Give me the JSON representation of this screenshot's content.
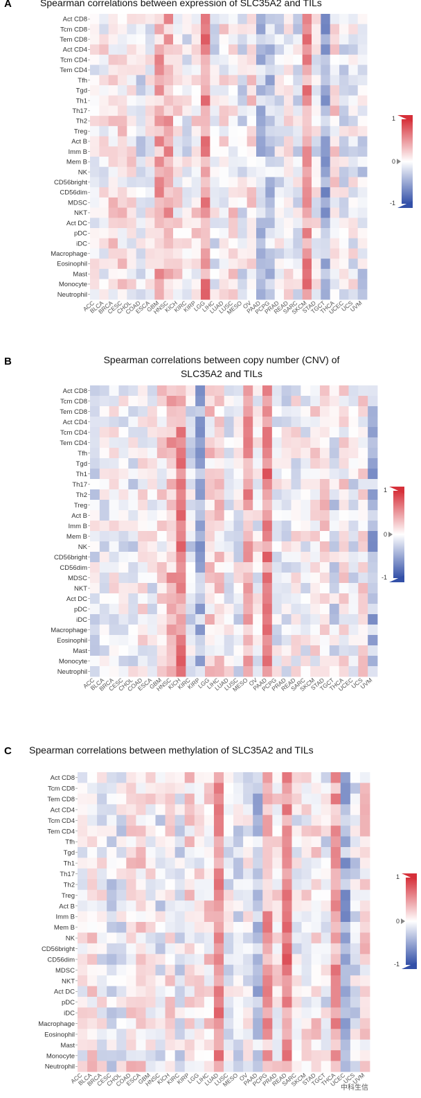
{
  "rows": [
    "Act CD8",
    "Tcm CD8",
    "Tem CD8",
    "Act CD4",
    "Tcm CD4",
    "Tem CD4",
    "Tfh",
    "Tgd",
    "Th1",
    "Th17",
    "Th2",
    "Treg",
    "Act B",
    "Imm B",
    "Mem B",
    "NK",
    "CD56bright",
    "CD56dim",
    "MDSC",
    "NKT",
    "Act DC",
    "pDC",
    "iDC",
    "Macrophage",
    "Eosinophil",
    "Mast",
    "Monocyte",
    "Neutrophil"
  ],
  "columns": [
    "ACC",
    "BLCA",
    "BRCA",
    "CESC",
    "CHOL",
    "COAD",
    "ESCA",
    "GBM",
    "HNSC",
    "KICH",
    "KIRC",
    "KIRP",
    "LGG",
    "LIHC",
    "LUAD",
    "LUSC",
    "MESO",
    "OV",
    "PAAD",
    "PCPG",
    "PRAD",
    "READ",
    "SARC",
    "SKCM",
    "STAD",
    "TGCT",
    "THCA",
    "UCEC",
    "UCS",
    "UVM"
  ],
  "colorbar": {
    "max_label": "1",
    "mid_label": "0",
    "min_label": "-1",
    "colors": {
      "positive": "#d6303a",
      "neutral": "#ffffff",
      "negative": "#3350a8"
    }
  },
  "watermark": "中科生信",
  "chart_data": [
    {
      "panel": "A",
      "type": "heatmap",
      "title": "Spearman correlations  between expression of SLC35A2 and TILs",
      "value_range": [
        -1,
        1
      ],
      "seed": 11,
      "strong_positive_columns": [
        "GBM",
        "HNSC",
        "LGG",
        "SKCM"
      ],
      "strong_negative_columns": [
        "PAAD",
        "PCPG",
        "TGCT"
      ]
    },
    {
      "panel": "B",
      "type": "heatmap",
      "title": "Spearman correlations  between copy number (CNV) of",
      "title2": "SLC35A2 and TILs",
      "value_range": [
        -1,
        1
      ],
      "seed": 29,
      "strong_positive_columns": [
        "KICH",
        "MESO",
        "PAAD",
        "HNSC"
      ],
      "strong_negative_columns": [
        "UVM",
        "KIRP"
      ]
    },
    {
      "panel": "C",
      "type": "heatmap",
      "title": "Spearman correlations between methylation of SLC35A2 and TILs",
      "value_range": [
        -1,
        1
      ],
      "seed": 47,
      "strong_positive_columns": [
        "PCPG",
        "READ",
        "THCA",
        "LUAD"
      ],
      "strong_negative_columns": [
        "PAAD",
        "UCEC"
      ]
    }
  ]
}
